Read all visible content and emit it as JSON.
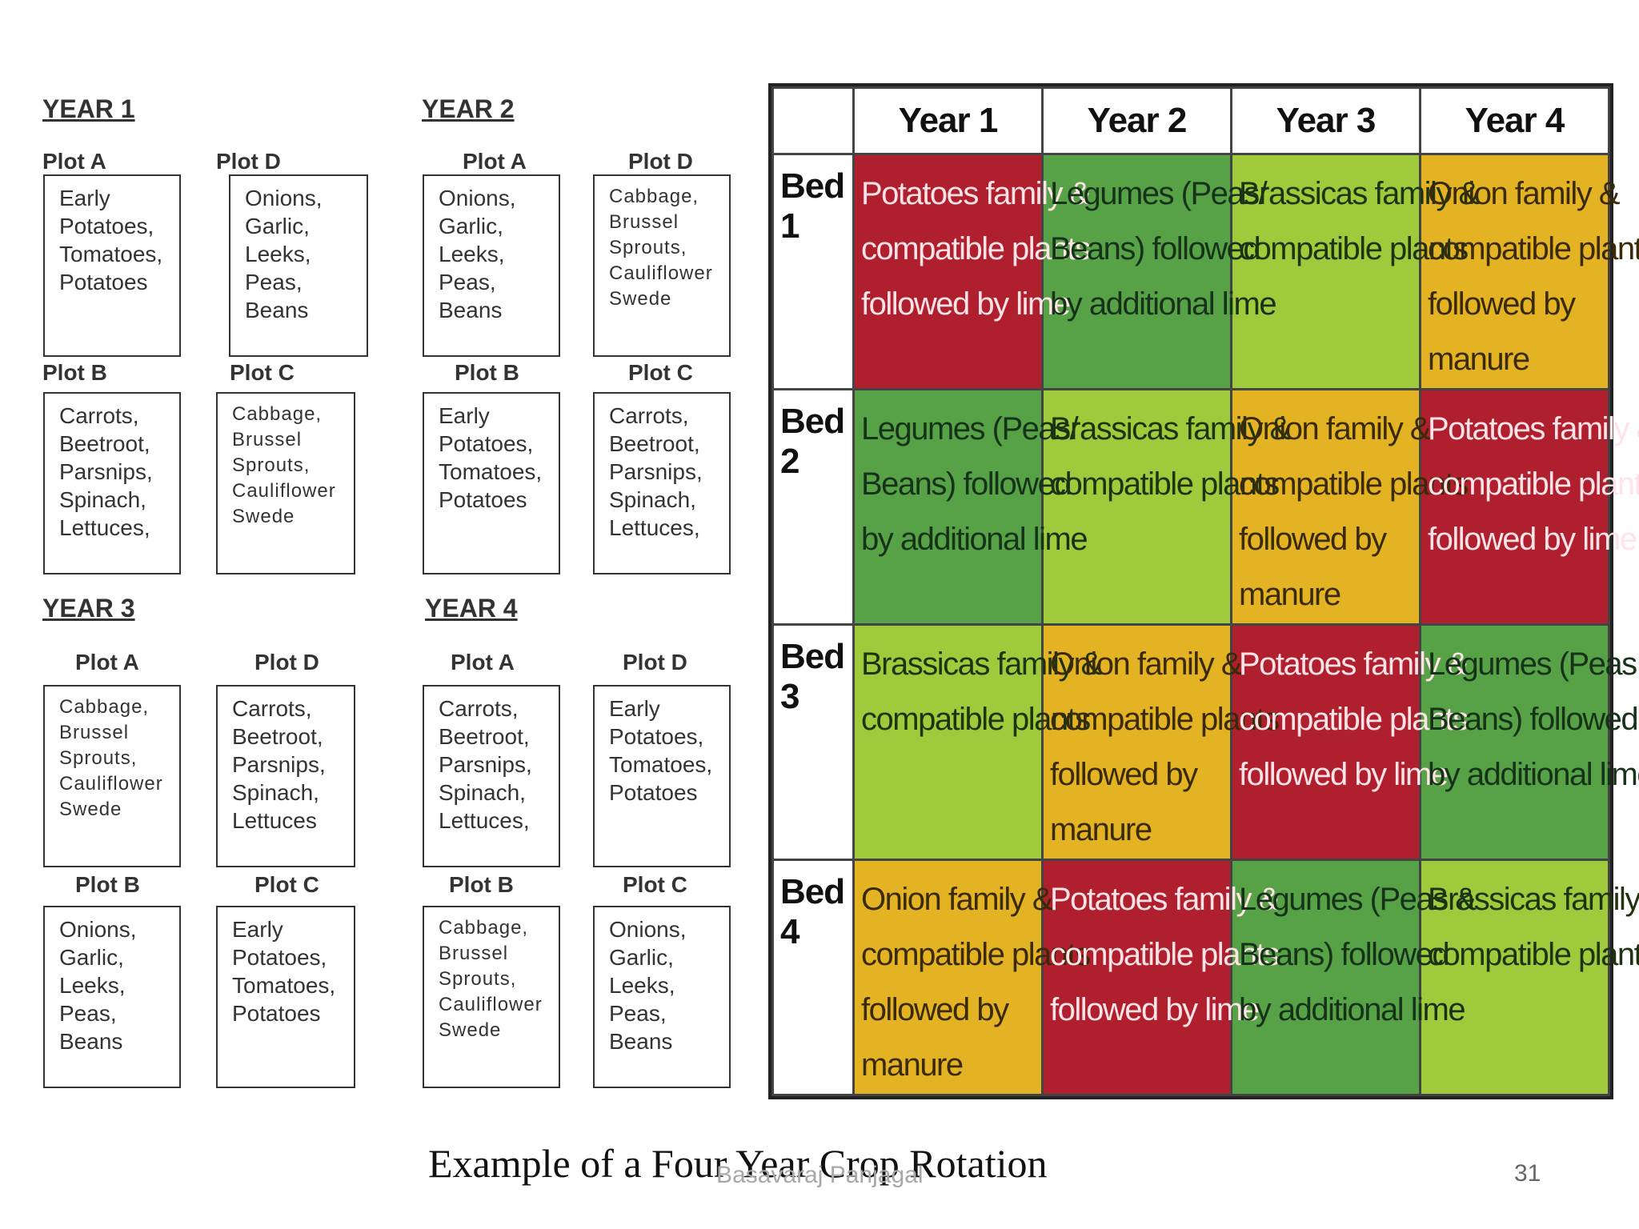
{
  "years": [
    {
      "title": "YEAR 1",
      "plots": [
        {
          "label": "Plot A",
          "crops": [
            "Early",
            "Potatoes,",
            "Tomatoes,",
            "Potatoes"
          ]
        },
        {
          "label": "Plot D",
          "crops": [
            "Onions,",
            "Garlic,",
            "Leeks,",
            "Peas,",
            "Beans"
          ]
        },
        {
          "label": "Plot B",
          "crops": [
            "Carrots,",
            "Beetroot,",
            "Parsnips,",
            "Spinach,",
            "Lettuces,"
          ]
        },
        {
          "label": "Plot C",
          "crops": [
            "Cabbage,",
            "Brussel",
            "Sprouts,",
            "Cauliflower",
            "Swede"
          ]
        }
      ]
    },
    {
      "title": "YEAR 2",
      "plots": [
        {
          "label": "Plot A",
          "crops": [
            "Onions,",
            "Garlic,",
            "Leeks,",
            "Peas,",
            "Beans"
          ]
        },
        {
          "label": "Plot D",
          "crops": [
            "Cabbage,",
            "Brussel",
            "Sprouts,",
            "Cauliflower",
            "Swede"
          ]
        },
        {
          "label": "Plot B",
          "crops": [
            "Early",
            "Potatoes,",
            "Tomatoes,",
            "Potatoes"
          ]
        },
        {
          "label": "Plot C",
          "crops": [
            "Carrots,",
            "Beetroot,",
            "Parsnips,",
            "Spinach,",
            "Lettuces,"
          ]
        }
      ]
    },
    {
      "title": "YEAR 3",
      "plots": [
        {
          "label": "Plot A",
          "crops": [
            "Cabbage,",
            "Brussel",
            "Sprouts,",
            "Cauliflower",
            "Swede"
          ]
        },
        {
          "label": "Plot D",
          "crops": [
            "Carrots,",
            "Beetroot,",
            "Parsnips,",
            "Spinach,",
            "Lettuces"
          ]
        },
        {
          "label": "Plot B",
          "crops": [
            "Onions,",
            "Garlic,",
            "Leeks,",
            "Peas,",
            "Beans"
          ]
        },
        {
          "label": "Plot C",
          "crops": [
            "Early",
            "Potatoes,",
            "Tomatoes,",
            "Potatoes"
          ]
        }
      ]
    },
    {
      "title": "YEAR 4",
      "plots": [
        {
          "label": "Plot A",
          "crops": [
            "Carrots,",
            "Beetroot,",
            "Parsnips,",
            "Spinach,",
            "Lettuces,"
          ]
        },
        {
          "label": "Plot D",
          "crops": [
            "Early",
            "Potatoes,",
            "Tomatoes,",
            "Potatoes"
          ]
        },
        {
          "label": "Plot B",
          "crops": [
            "Cabbage,",
            "Brussel",
            "Sprouts,",
            "Cauliflower",
            "Swede"
          ]
        },
        {
          "label": "Plot C",
          "crops": [
            "Onions,",
            "Garlic,",
            "Leeks,",
            "Peas,",
            "Beans"
          ]
        }
      ]
    }
  ],
  "rotation_table": {
    "headers": [
      "Year 1",
      "Year 2",
      "Year 3",
      "Year 4"
    ],
    "colors": {
      "red": "#b01f2e",
      "green": "#57a246",
      "lime": "#9fca3c",
      "yellow": "#e3b323"
    },
    "rows": [
      {
        "bed": "Bed 1",
        "cells": [
          {
            "color": "red",
            "lines": [
              "Potatoes family &",
              "compatible plants",
              "followed by lime"
            ]
          },
          {
            "color": "green",
            "lines": [
              "Legumes (Peas/",
              "Beans) followed",
              "by additional lime"
            ]
          },
          {
            "color": "lime",
            "lines": [
              "Brassicas family &",
              "compatible plants"
            ]
          },
          {
            "color": "yellow",
            "lines": [
              "Onion family &",
              "compatible plants",
              "followed by",
              "manure"
            ]
          }
        ]
      },
      {
        "bed": "Bed 2",
        "cells": [
          {
            "color": "green",
            "lines": [
              "Legumes (Peas/",
              "Beans) followed",
              "by additional lime"
            ]
          },
          {
            "color": "lime",
            "lines": [
              "Brassicas family &",
              "compatible plants"
            ]
          },
          {
            "color": "yellow",
            "lines": [
              "Onion family &",
              "compatible plants",
              "followed by",
              "manure"
            ]
          },
          {
            "color": "red",
            "lines": [
              "Potatoes family &",
              "compatible plants",
              "followed by lime"
            ]
          }
        ]
      },
      {
        "bed": "Bed 3",
        "cells": [
          {
            "color": "lime",
            "lines": [
              "Brassicas family &",
              "compatible plants"
            ]
          },
          {
            "color": "yellow",
            "lines": [
              "Onion family &",
              "compatible plants",
              "followed by",
              "manure"
            ]
          },
          {
            "color": "red",
            "lines": [
              "Potatoes family &",
              "compatible plants",
              "followed by lime"
            ]
          },
          {
            "color": "green",
            "lines": [
              "Legumes (Peas &",
              "Beans) followed",
              "by additional lime"
            ]
          }
        ]
      },
      {
        "bed": "Bed 4",
        "cells": [
          {
            "color": "yellow",
            "lines": [
              "Onion family &",
              "compatible plants",
              "followed by",
              "manure"
            ]
          },
          {
            "color": "red",
            "lines": [
              "Potatoes family &",
              "compatible plants",
              "followed by lime"
            ]
          },
          {
            "color": "green",
            "lines": [
              "Legumes (Peas &",
              "Beans) followed",
              "by additional lime"
            ]
          },
          {
            "color": "lime",
            "lines": [
              "Brassicas family &",
              "compatible plants"
            ]
          }
        ]
      }
    ]
  },
  "footer": {
    "caption": "Example of a Four Year Crop Rotation",
    "author": "Basavaraj Panjagal",
    "page_number": "31"
  }
}
